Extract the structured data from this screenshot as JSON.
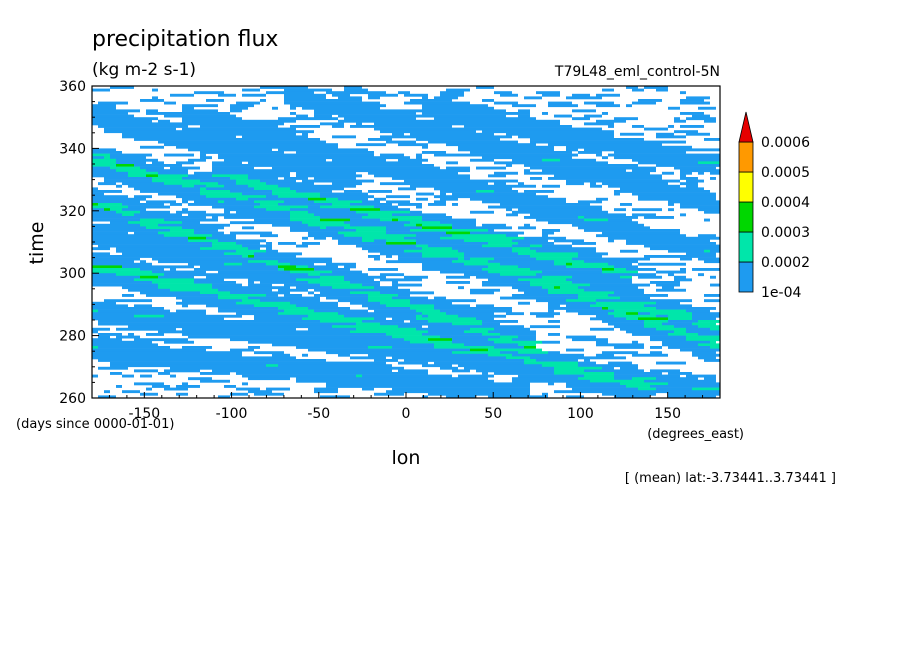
{
  "chart_data": {
    "type": "heatmap",
    "title": "precipitation flux",
    "units": "(kg m-2 s-1)",
    "run_label": "T79L48_eml_control-5N",
    "xlabel": "lon",
    "xunits": "(degrees_east)",
    "ylabel": "time",
    "yunits": "(days since 0000-01-01)",
    "xlim": [
      -180,
      180
    ],
    "ylim": [
      260,
      360
    ],
    "x_ticks": [
      -150,
      -100,
      -50,
      0,
      50,
      100,
      150
    ],
    "y_ticks": [
      260,
      280,
      300,
      320,
      340,
      360
    ],
    "footnote": "[ (mean) lat:-3.73441..3.73441 ]",
    "colorbar": {
      "labels": [
        "1e-04",
        "0.0002",
        "0.0003",
        "0.0004",
        "0.0005",
        "0.0006"
      ],
      "colors": [
        "#1e9bf0",
        "#00e6aa",
        "#00d700",
        "#ffff00",
        "#ff9900",
        "#e60000"
      ]
    },
    "pattern": {
      "description_free": true,
      "bands": [
        {
          "lon0": -180,
          "t0": 322,
          "lon1": 60,
          "t1": 278,
          "level": 2
        },
        {
          "lon0": -180,
          "t0": 336,
          "lon1": 180,
          "t1": 282,
          "level": 2
        },
        {
          "lon0": -120,
          "t0": 350,
          "lon1": 180,
          "t1": 306,
          "level": 1
        },
        {
          "lon0": -180,
          "t0": 302,
          "lon1": 130,
          "t1": 264,
          "level": 2
        },
        {
          "lon0": -60,
          "t0": 356,
          "lon1": 180,
          "t1": 322,
          "level": 1
        },
        {
          "lon0": -180,
          "t0": 312,
          "lon1": 40,
          "t1": 286,
          "level": 1
        },
        {
          "lon0": -180,
          "t0": 288,
          "lon1": 180,
          "t1": 262,
          "level": 1
        },
        {
          "lon0": -100,
          "t0": 330,
          "lon1": 120,
          "t1": 300,
          "level": 2
        },
        {
          "lon0": 20,
          "t0": 352,
          "lon1": 180,
          "t1": 334,
          "level": 1
        },
        {
          "lon0": -180,
          "t0": 350,
          "lon1": -40,
          "t1": 332,
          "level": 1
        },
        {
          "lon0": -180,
          "t0": 276,
          "lon1": 60,
          "t1": 262,
          "level": 1
        },
        {
          "lon0": 60,
          "t0": 300,
          "lon1": 180,
          "t1": 276,
          "level": 2
        }
      ]
    }
  }
}
